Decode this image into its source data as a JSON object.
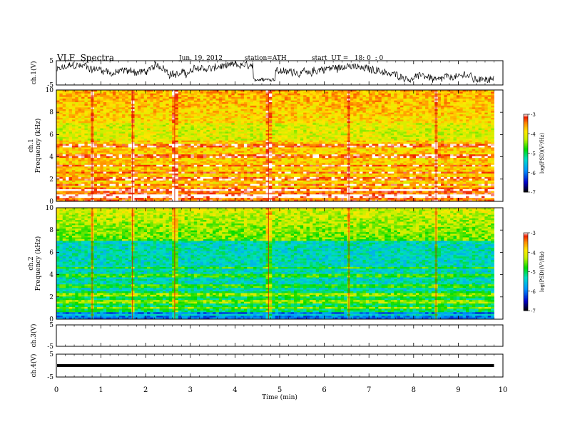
{
  "header": {
    "title": "VLF  Spectra",
    "date": "Jun. 19, 2012",
    "station": "station=ATH",
    "start_ut": "start  UT =   18: 0  : 0"
  },
  "chart_data": [
    {
      "type": "line",
      "panel": "ch1",
      "ylabel": "ch.1(V)",
      "ylim": [
        -5,
        5
      ],
      "yticks": [
        "5",
        "-5"
      ],
      "xlim": [
        0,
        10
      ],
      "series": [
        {
          "description": "broadband waveform amplitude, fluctuating roughly between -4 and 4 V, with a dip near 4.7 min"
        }
      ]
    },
    {
      "type": "heatmap",
      "panel": "ch1-spectrogram",
      "ylabel": "ch.1\nFrequency  (kHz)",
      "ylabel_top": "ch.1",
      "ylabel_bottom": "Frequency  (kHz)",
      "ylim": [
        0,
        10
      ],
      "yticks": [
        "0",
        "2",
        "4",
        "6",
        "8",
        "10"
      ],
      "xlim": [
        0,
        9.8
      ],
      "colorbar": {
        "label": "log(PSD)(V²/Hz)",
        "range": [
          -7,
          -3
        ],
        "ticks": [
          "-3",
          "-4",
          "-5",
          "-6",
          "-7"
        ]
      },
      "bands_khz": [
        0.5,
        1.0,
        1.5,
        2.0,
        2.6,
        3.2,
        4.1,
        4.9,
        5.1
      ],
      "event_minutes": [
        0.8,
        1.7,
        2.65,
        4.75,
        6.55,
        8.5
      ]
    },
    {
      "type": "heatmap",
      "panel": "ch2-spectrogram",
      "ylabel_top": "ch.2",
      "ylabel_bottom": "Frequency  (kHz)",
      "ylim": [
        0,
        10
      ],
      "yticks": [
        "0",
        "2",
        "4",
        "6",
        "8",
        "10"
      ],
      "xlim": [
        0,
        9.8
      ],
      "colorbar": {
        "label": "log(PSD)(V²/Hz)",
        "range": [
          -7,
          -3
        ],
        "ticks": [
          "-3",
          "-4",
          "-5",
          "-6",
          "-7"
        ]
      },
      "bands_khz": [
        0.4,
        1.0,
        1.6,
        2.2,
        3.0,
        3.9,
        4.6
      ],
      "event_minutes": [
        0.8,
        1.7,
        2.65,
        4.75,
        6.55,
        8.5
      ]
    },
    {
      "type": "line",
      "panel": "ch3",
      "ylabel": "ch.3(V)",
      "ylim": [
        -5,
        5
      ],
      "yticks": [
        "5",
        "-5"
      ],
      "xlim": [
        0,
        10
      ],
      "series": [
        {
          "description": "no visible signal"
        }
      ]
    },
    {
      "type": "line",
      "panel": "ch4",
      "ylabel": "ch.4(V)",
      "ylim": [
        -5,
        5
      ],
      "yticks": [
        "5",
        "-5"
      ],
      "xlim": [
        0,
        10
      ],
      "series": [
        {
          "description": "flat line near 0 V",
          "value": 0
        }
      ]
    }
  ],
  "x_axis": {
    "label": "Time  (min)",
    "range": [
      0,
      10
    ],
    "ticks": [
      "0",
      "1",
      "2",
      "3",
      "4",
      "5",
      "6",
      "7",
      "8",
      "9",
      "10"
    ]
  }
}
